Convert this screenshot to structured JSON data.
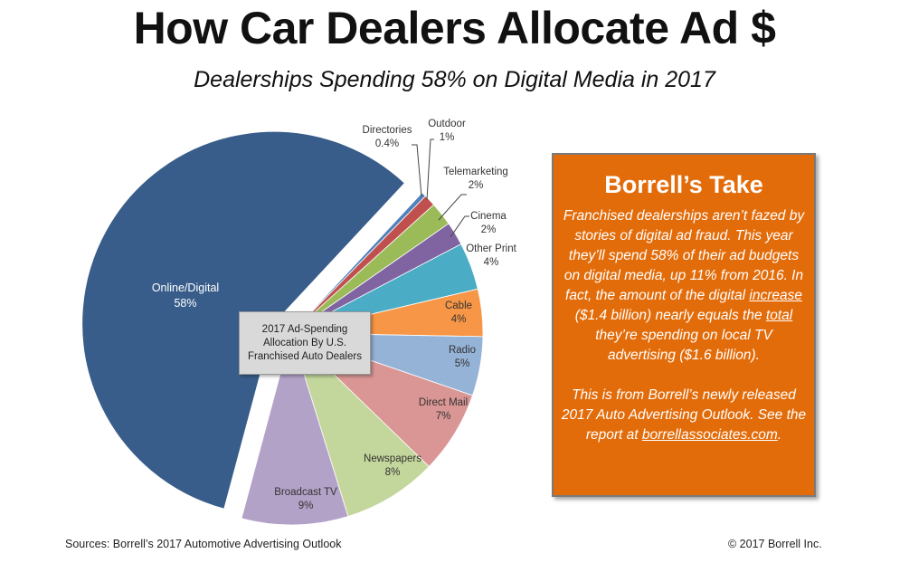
{
  "title": "How Car Dealers Allocate Ad $",
  "subtitle": "Dealerships Spending 58% on Digital Media in 2017",
  "chart_data": {
    "type": "pie",
    "title": "2017 Ad-Spending Allocation By U.S. Franchised Auto Dealers",
    "categories": [
      "Directories",
      "Outdoor",
      "Telemarketing",
      "Cinema",
      "Other Print",
      "Cable",
      "Radio",
      "Direct Mail",
      "Newspapers",
      "Broadcast TV",
      "Online/Digital"
    ],
    "values": [
      0.4,
      1,
      2,
      2,
      4,
      4,
      5,
      7,
      8,
      9,
      58
    ],
    "value_labels": [
      "0.4%",
      "1%",
      "2%",
      "2%",
      "4%",
      "4%",
      "5%",
      "7%",
      "8%",
      "9%",
      "58%"
    ],
    "colors": [
      "#4f81bd",
      "#c0504d",
      "#9bbb59",
      "#8064a2",
      "#4bacc6",
      "#f79646",
      "#95b3d7",
      "#d99694",
      "#c3d69b",
      "#b3a2c7",
      "#385d8a"
    ],
    "exploded": "Online/Digital",
    "legend": "none"
  },
  "take": {
    "heading": "Borrell’s Take",
    "p1a": "Franchised dealerships aren’t fazed by stories of digital ad fraud. This year they’ll spend 58% of their ad budgets on digital media, up 11% from 2016. In fact, the amount of the digital ",
    "p1_u1": "increase",
    "p1b": "  ($1.4 billion) nearly equals the ",
    "p1_u2": "total",
    "p1c": " they’re spending on local TV advertising ($1.6 billion).",
    "p2a": "This is from Borrell’s newly released 2017 Auto Advertising Outlook. See the report at ",
    "p2_link": "borrellassociates.com",
    "p2b": "."
  },
  "footer": {
    "source": "Sources:  Borrell’s 2017 Automotive Advertising Outlook",
    "copyright": "© 2017 Borrell Inc."
  }
}
